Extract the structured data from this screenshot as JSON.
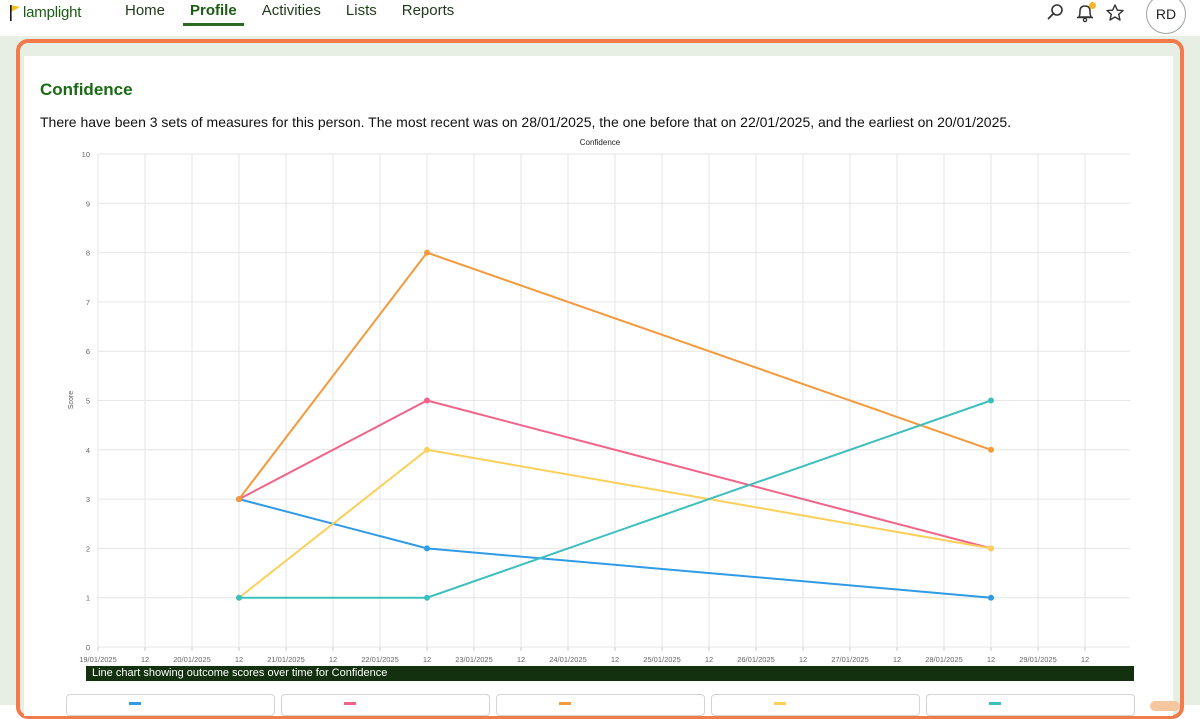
{
  "app": {
    "logo_text": "lamplight",
    "nav": [
      {
        "label": "Home",
        "active": false
      },
      {
        "label": "Profile",
        "active": true
      },
      {
        "label": "Activities",
        "active": false
      },
      {
        "label": "Lists",
        "active": false
      },
      {
        "label": "Reports",
        "active": false
      }
    ],
    "header_icons": [
      "search-icon",
      "bell-icon",
      "star-icon"
    ],
    "notification_dot_color": "#f5b52a",
    "avatar_initials": "RD"
  },
  "section": {
    "title": "Confidence",
    "description": "There have been 3 sets of measures for this person. The most recent was on 28/01/2025, the one before that on 22/01/2025, and the earliest on 20/01/2025.",
    "caption": "Line chart showing outcome scores over time for Confidence"
  },
  "chart_data": {
    "type": "line",
    "title": "Confidence",
    "ylabel": "Score",
    "xlabel": "",
    "ylim": [
      0,
      10
    ],
    "yticks": [
      "0",
      "1",
      "2",
      "3",
      "4",
      "5",
      "6",
      "7",
      "8",
      "9",
      "10"
    ],
    "xticks": [
      "19/01/2025",
      "12",
      "20/01/2025",
      "12",
      "21/01/2025",
      "12",
      "22/01/2025",
      "12",
      "23/01/2025",
      "12",
      "24/01/2025",
      "12",
      "25/01/2025",
      "12",
      "26/01/2025",
      "12",
      "27/01/2025",
      "12",
      "28/01/2025",
      "12",
      "29/01/2025",
      "12"
    ],
    "x": [
      "20/01/2025 12:00",
      "22/01/2025 12:00",
      "28/01/2025 12:00"
    ],
    "grid": true,
    "series": [
      {
        "color": "#2f9be6",
        "values": [
          3,
          2,
          1
        ]
      },
      {
        "color": "#f2638a",
        "values": [
          3,
          5,
          2
        ]
      },
      {
        "color": "#f49a3d",
        "values": [
          3,
          8,
          4
        ]
      },
      {
        "color": "#fbd05a",
        "values": [
          1,
          4,
          2
        ]
      },
      {
        "color": "#3dbfbd",
        "values": [
          1,
          1,
          5
        ]
      }
    ]
  }
}
